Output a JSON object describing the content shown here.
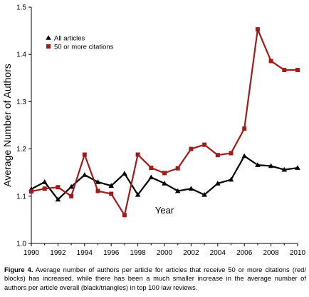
{
  "chart_data": {
    "type": "line",
    "x": [
      1990,
      1991,
      1992,
      1993,
      1994,
      1995,
      1996,
      1997,
      1998,
      1999,
      2000,
      2001,
      2002,
      2003,
      2004,
      2005,
      2006,
      2007,
      2008,
      2009,
      2010
    ],
    "series": [
      {
        "name": "All articles",
        "color": "#000000",
        "marker": "triangle",
        "values": [
          1.115,
          1.13,
          1.093,
          1.12,
          1.145,
          1.13,
          1.122,
          1.148,
          1.103,
          1.14,
          1.127,
          1.111,
          1.116,
          1.103,
          1.127,
          1.135,
          1.185,
          1.166,
          1.164,
          1.156,
          1.16
        ]
      },
      {
        "name": "50 or more citations",
        "color": "#a01c1c",
        "marker": "square",
        "values": [
          1.11,
          1.116,
          1.119,
          1.1,
          1.188,
          1.111,
          1.105,
          1.06,
          1.188,
          1.16,
          1.149,
          1.159,
          1.2,
          1.209,
          1.187,
          1.191,
          1.243,
          1.453,
          1.386,
          1.367,
          1.367
        ]
      }
    ],
    "xlabel": "Year",
    "ylabel": "Average Number of Authors",
    "xlim": [
      1990,
      2010
    ],
    "ylim": [
      1.0,
      1.5
    ],
    "xticks": [
      "1990",
      "1992",
      "1994",
      "1996",
      "1998",
      "2000",
      "2002",
      "2004",
      "2006",
      "2008",
      "2010"
    ],
    "yticks": [
      "1.0",
      "1.1",
      "1.2",
      "1.3",
      "1.4",
      "1.5"
    ],
    "legend_position": "top-left",
    "grid": false
  },
  "caption": {
    "label": "Figure 4.",
    "text": " Average number of authors per article for articles that receive 50 or more citations (red/ blocks) has increased, while there has been a much smaller increase in the average number of authors per article overall (black/triangles) in top 100 law reviews."
  }
}
